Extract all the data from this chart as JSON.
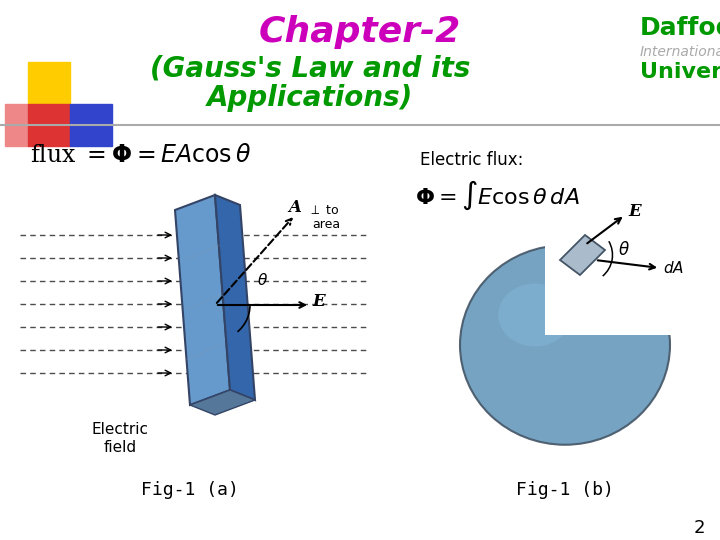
{
  "title_line1": "Chapter-2",
  "title_line2": "(Gauss's Law and its",
  "title_line3": "Applications)",
  "title_color": "#cc00bb",
  "subtitle_color": "#009900",
  "background_color": "#ffffff",
  "fig1a_label": "Fig-1 (a)",
  "fig1b_label": "Fig-1 (b)",
  "page_number": "2",
  "electric_flux_label": "Electric flux:",
  "electric_field_label": "Electric\nfield",
  "plate_color": "#6699cc",
  "plate_color_dark": "#3366aa",
  "plate_color_side": "#4477bb",
  "sphere_color": "#6699bb",
  "sphere_highlight": "#88bbdd",
  "decoration_yellow": "#ffcc00",
  "decoration_red_grad_top": "#ff6666",
  "decoration_red_grad_bot": "#cc0000",
  "decoration_blue": "#3344cc",
  "decoration_pink": "#ddaaaa"
}
